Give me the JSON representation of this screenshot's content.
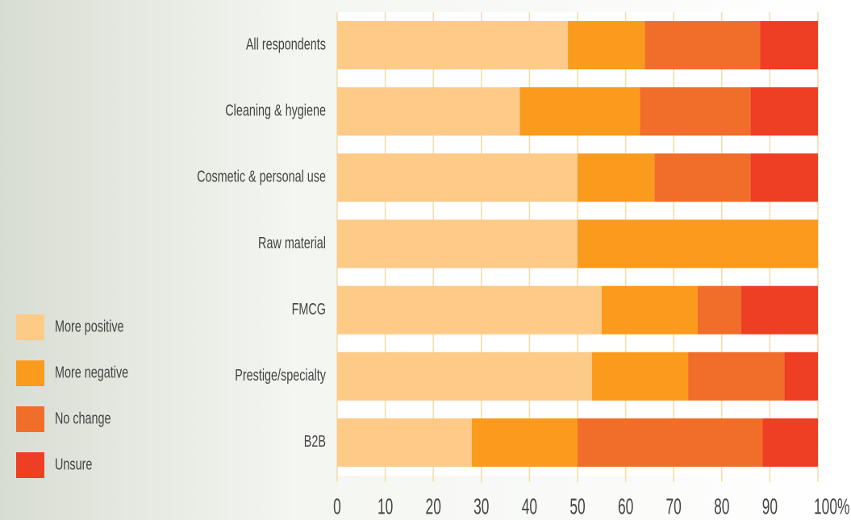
{
  "chart_data": {
    "type": "stacked-bar-horizontal",
    "categories": [
      "All respondents",
      "Cleaning & hygiene",
      "Cosmetic & personal use",
      "Raw material",
      "FMCG",
      "Prestige/specialty",
      "B2B"
    ],
    "series": [
      {
        "name": "More positive",
        "color": "#fdca88",
        "values": [
          48,
          38,
          50,
          50,
          55,
          53,
          28
        ]
      },
      {
        "name": "More negative",
        "color": "#fa9b1e",
        "values": [
          16,
          25,
          16,
          50,
          20,
          20,
          22
        ]
      },
      {
        "name": "No change",
        "color": "#f06e2a",
        "values": [
          24,
          23,
          20,
          0,
          9,
          20,
          38.5
        ]
      },
      {
        "name": "Unsure",
        "color": "#ee3e24",
        "values": [
          12,
          14,
          14,
          0,
          16,
          7,
          11.5
        ]
      }
    ],
    "xlim": [
      0,
      100
    ],
    "xticks": [
      0,
      10,
      20,
      30,
      40,
      50,
      60,
      70,
      80,
      90,
      {
        "value": 100,
        "label": "100%"
      }
    ],
    "grid": true
  }
}
